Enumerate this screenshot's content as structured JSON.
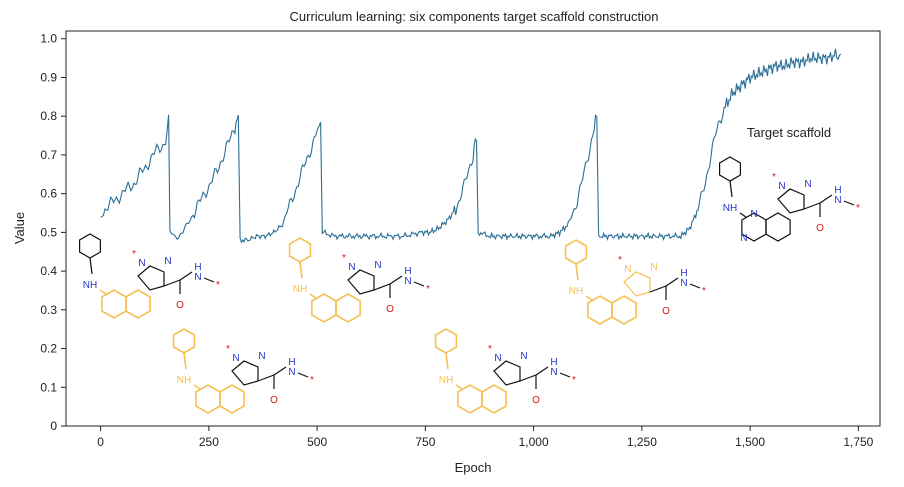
{
  "chart_data": {
    "type": "line",
    "title": "Curriculum learning: six components target scaffold construction",
    "xlabel": "Epoch",
    "ylabel": "Value",
    "xlim": [
      -80,
      1800
    ],
    "ylim": [
      0,
      1.02
    ],
    "xticks": [
      0,
      250,
      500,
      750,
      1000,
      1250,
      1500,
      1750
    ],
    "xtick_labels": [
      "0",
      "250",
      "500",
      "750",
      "1,000",
      "1,250",
      "1,500",
      "1,750"
    ],
    "yticks": [
      0,
      0.1,
      0.2,
      0.3,
      0.4,
      0.5,
      0.6,
      0.7,
      0.8,
      0.9,
      1.0
    ],
    "ytick_labels": [
      "0",
      "0.1",
      "0.2",
      "0.3",
      "0.4",
      "0.5",
      "0.6",
      "0.7",
      "0.8",
      "0.9",
      "1.0"
    ],
    "grid": false,
    "line_color": "#2b6f95",
    "highlight_color": "#f5c054",
    "series": [
      {
        "points": [
          [
            0,
            0.54
          ],
          [
            10,
            0.56
          ],
          [
            20,
            0.57
          ],
          [
            30,
            0.58
          ],
          [
            40,
            0.59
          ],
          [
            50,
            0.6
          ],
          [
            60,
            0.61
          ],
          [
            70,
            0.62
          ],
          [
            80,
            0.63
          ],
          [
            90,
            0.65
          ],
          [
            100,
            0.66
          ],
          [
            110,
            0.68
          ],
          [
            120,
            0.7
          ],
          [
            130,
            0.71
          ],
          [
            140,
            0.72
          ],
          [
            150,
            0.74
          ],
          [
            157,
            0.8
          ],
          [
            160,
            0.5
          ],
          [
            170,
            0.49
          ],
          [
            180,
            0.49
          ],
          [
            190,
            0.5
          ],
          [
            200,
            0.52
          ],
          [
            210,
            0.54
          ],
          [
            220,
            0.56
          ],
          [
            230,
            0.58
          ],
          [
            240,
            0.6
          ],
          [
            250,
            0.62
          ],
          [
            260,
            0.64
          ],
          [
            270,
            0.66
          ],
          [
            280,
            0.69
          ],
          [
            290,
            0.72
          ],
          [
            300,
            0.74
          ],
          [
            310,
            0.77
          ],
          [
            318,
            0.8
          ],
          [
            322,
            0.48
          ],
          [
            340,
            0.48
          ],
          [
            360,
            0.49
          ],
          [
            380,
            0.49
          ],
          [
            400,
            0.5
          ],
          [
            420,
            0.52
          ],
          [
            430,
            0.55
          ],
          [
            440,
            0.58
          ],
          [
            450,
            0.61
          ],
          [
            460,
            0.64
          ],
          [
            470,
            0.67
          ],
          [
            480,
            0.7
          ],
          [
            490,
            0.73
          ],
          [
            500,
            0.76
          ],
          [
            508,
            0.79
          ],
          [
            512,
            0.5
          ],
          [
            540,
            0.49
          ],
          [
            580,
            0.49
          ],
          [
            620,
            0.49
          ],
          [
            660,
            0.49
          ],
          [
            700,
            0.49
          ],
          [
            740,
            0.5
          ],
          [
            760,
            0.5
          ],
          [
            780,
            0.51
          ],
          [
            800,
            0.53
          ],
          [
            820,
            0.56
          ],
          [
            830,
            0.59
          ],
          [
            840,
            0.62
          ],
          [
            850,
            0.66
          ],
          [
            860,
            0.7
          ],
          [
            868,
            0.75
          ],
          [
            872,
            0.5
          ],
          [
            900,
            0.49
          ],
          [
            950,
            0.49
          ],
          [
            1000,
            0.49
          ],
          [
            1040,
            0.49
          ],
          [
            1060,
            0.5
          ],
          [
            1080,
            0.52
          ],
          [
            1090,
            0.55
          ],
          [
            1100,
            0.58
          ],
          [
            1110,
            0.62
          ],
          [
            1120,
            0.67
          ],
          [
            1130,
            0.72
          ],
          [
            1140,
            0.77
          ],
          [
            1146,
            0.8
          ],
          [
            1150,
            0.49
          ],
          [
            1200,
            0.49
          ],
          [
            1250,
            0.49
          ],
          [
            1300,
            0.49
          ],
          [
            1340,
            0.49
          ],
          [
            1360,
            0.51
          ],
          [
            1380,
            0.56
          ],
          [
            1390,
            0.6
          ],
          [
            1400,
            0.65
          ],
          [
            1410,
            0.7
          ],
          [
            1420,
            0.75
          ],
          [
            1430,
            0.79
          ],
          [
            1440,
            0.82
          ],
          [
            1460,
            0.86
          ],
          [
            1480,
            0.88
          ],
          [
            1500,
            0.9
          ],
          [
            1520,
            0.91
          ],
          [
            1540,
            0.92
          ],
          [
            1560,
            0.93
          ],
          [
            1580,
            0.93
          ],
          [
            1600,
            0.94
          ],
          [
            1620,
            0.94
          ],
          [
            1640,
            0.95
          ],
          [
            1660,
            0.95
          ],
          [
            1680,
            0.95
          ],
          [
            1700,
            0.96
          ],
          [
            1710,
            0.96
          ]
        ]
      }
    ],
    "annotations": [
      {
        "text": "Target scaffold"
      }
    ]
  },
  "molecule_labels": {
    "nh": "NH",
    "n": "N",
    "hn": "HN",
    "o": "O",
    "star": "*",
    "nitrogen_color": "#2233cc",
    "oxygen_color": "#dd1111",
    "bond_color": "#111111"
  }
}
